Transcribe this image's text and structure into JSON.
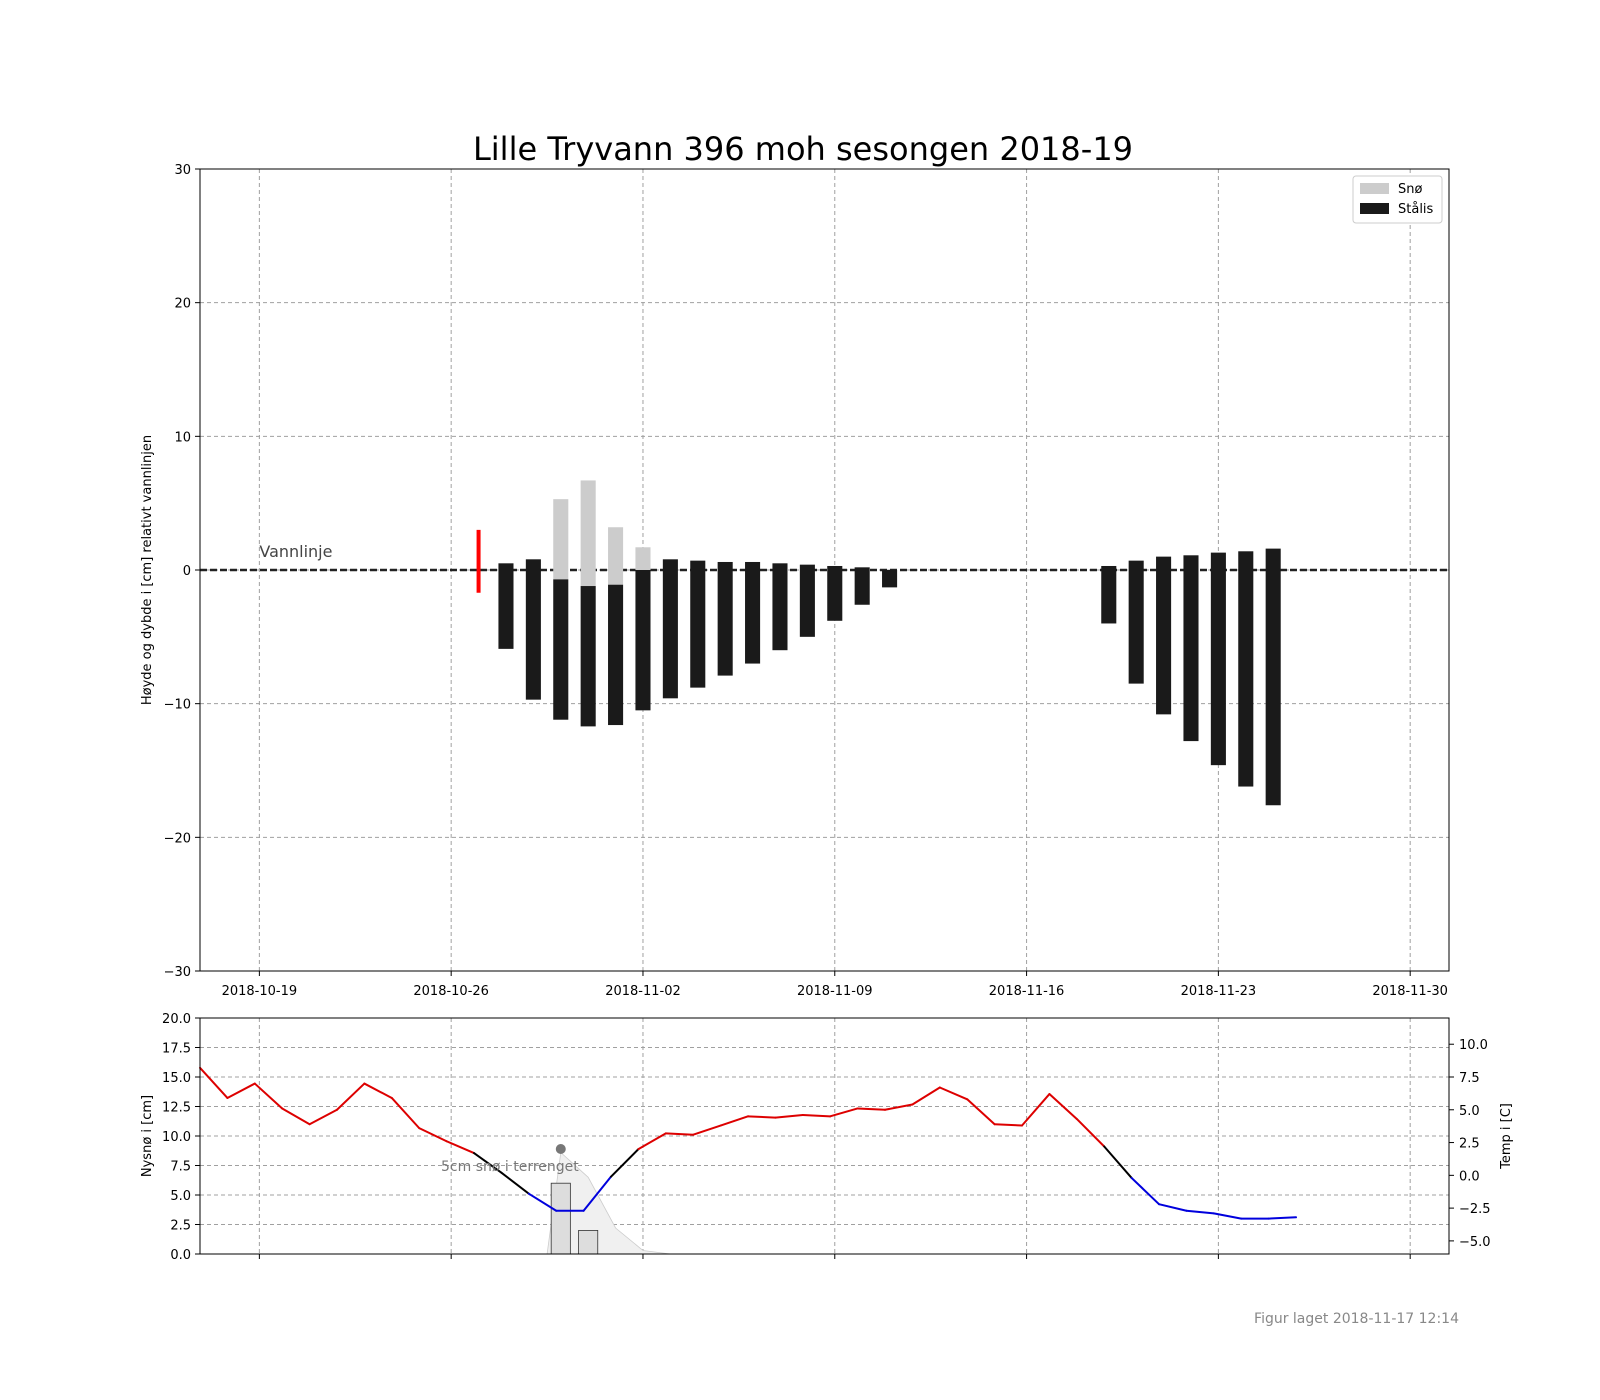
{
  "chart_data": [
    {
      "type": "bar",
      "title": "Lille Tryvann 396 moh sesongen 2018-19",
      "ylabel": "Høyde og dybde i [cm] relativt vannlinjen",
      "xlabel": "",
      "ylim": [
        -30,
        30
      ],
      "xlim": [
        "2018-10-16 20:00",
        "2018-12-01 10:00"
      ],
      "yticks": [
        -30,
        -20,
        -10,
        0,
        10,
        20,
        30
      ],
      "xtick_dates": [
        "2018-10-19",
        "2018-10-26",
        "2018-11-02",
        "2018-11-09",
        "2018-11-16",
        "2018-11-23",
        "2018-11-30"
      ],
      "grid": true,
      "legend_placement": "top-right",
      "annotation": "Vannlinje",
      "colors": {
        "snow": "#cccccc",
        "ice": "#1a1a1a",
        "slush": "#ff0000",
        "waterline": "#222222"
      },
      "legend": [
        {
          "label": "Snø",
          "color": "#cccccc"
        },
        {
          "label": "Stålis",
          "color": "#1a1a1a"
        }
      ],
      "slush_marker": {
        "date": "2018-10-27",
        "top": 3.0,
        "bottom": -1.7
      },
      "series": [
        {
          "name": "Stålis",
          "dates": [
            "2018-10-28",
            "2018-10-29",
            "2018-10-30",
            "2018-10-31",
            "2018-11-01",
            "2018-11-02",
            "2018-11-03",
            "2018-11-04",
            "2018-11-05",
            "2018-11-06",
            "2018-11-07",
            "2018-11-08",
            "2018-11-09",
            "2018-11-10",
            "2018-11-11",
            "2018-11-19",
            "2018-11-20",
            "2018-11-21",
            "2018-11-22",
            "2018-11-23",
            "2018-11-24",
            "2018-11-25"
          ],
          "top": [
            0.5,
            0.8,
            -0.7,
            -1.2,
            -1.1,
            0.0,
            0.8,
            0.7,
            0.6,
            0.6,
            0.5,
            0.4,
            0.3,
            0.2,
            0.0,
            0.3,
            0.7,
            1.0,
            1.1,
            1.3,
            1.4,
            1.6
          ],
          "bottom": [
            -5.9,
            -9.7,
            -11.2,
            -11.7,
            -11.6,
            -10.5,
            -9.6,
            -8.8,
            -7.9,
            -7.0,
            -6.0,
            -5.0,
            -3.8,
            -2.6,
            -1.3,
            -4.0,
            -8.5,
            -10.8,
            -12.8,
            -14.6,
            -16.2,
            -17.6
          ]
        },
        {
          "name": "Snø",
          "dates": [
            "2018-10-30",
            "2018-10-31",
            "2018-11-01",
            "2018-11-02"
          ],
          "top": [
            5.3,
            6.7,
            3.2,
            1.7
          ],
          "bottom": [
            -0.7,
            -1.2,
            -1.1,
            0.0
          ]
        }
      ]
    },
    {
      "type": "line",
      "ylabel": "Nysnø i [cm]",
      "y2label": "Temp i [C]",
      "ylim": [
        0,
        20
      ],
      "y2lim": [
        -6,
        12
      ],
      "yticks": [
        0.0,
        2.5,
        5.0,
        7.5,
        10.0,
        12.5,
        15.0,
        17.5,
        20.0
      ],
      "y2ticks": [
        -5.0,
        -2.5,
        0.0,
        2.5,
        5.0,
        7.5,
        10.0
      ],
      "grid": true,
      "annotation": "5cm snø i terrenget",
      "annotation_point": {
        "date": "2018-10-30",
        "value": 8.9
      },
      "colors": {
        "warm": "#dd0000",
        "cold": "#0000dd",
        "transition": "#000000",
        "snow_area": "#f0f0f0",
        "snow_bar": "#dddddd"
      },
      "new_snow_bars": {
        "dates": [
          "2018-10-30",
          "2018-10-31"
        ],
        "values": [
          6.0,
          2.0
        ]
      },
      "terrain_snow": {
        "dates": [
          "2018-10-16 20:00",
          "2018-10-29 12:00",
          "2018-10-30",
          "2018-10-31",
          "2018-11-01",
          "2018-11-02",
          "2018-11-03",
          "2018-12-01 10:00"
        ],
        "values": [
          0,
          0,
          8.6,
          6.5,
          2.2,
          0.3,
          0,
          0
        ]
      },
      "temperature": {
        "dates": [
          "2018-10-16 20:00",
          "2018-10-17 20:00",
          "2018-10-18 20:00",
          "2018-10-19 20:00",
          "2018-10-20 20:00",
          "2018-10-21 20:00",
          "2018-10-22 20:00",
          "2018-10-23 20:00",
          "2018-10-24 20:00",
          "2018-10-25 20:00",
          "2018-10-26 20:00",
          "2018-10-27 20:00",
          "2018-10-28 20:00",
          "2018-10-29 20:00",
          "2018-10-30 20:00",
          "2018-10-31 20:00",
          "2018-11-01 20:00",
          "2018-11-02 20:00",
          "2018-11-03 20:00",
          "2018-11-04 20:00",
          "2018-11-05 20:00",
          "2018-11-06 20:00",
          "2018-11-07 20:00",
          "2018-11-08 20:00",
          "2018-11-09 20:00",
          "2018-11-10 20:00",
          "2018-11-11 20:00",
          "2018-11-12 20:00",
          "2018-11-13 20:00",
          "2018-11-14 20:00",
          "2018-11-15 20:00",
          "2018-11-16 20:00",
          "2018-11-17 20:00",
          "2018-11-18 20:00",
          "2018-11-19 20:00",
          "2018-11-20 20:00",
          "2018-11-21 20:00",
          "2018-11-22 20:00",
          "2018-11-23 20:00",
          "2018-11-24 20:00",
          "2018-11-25 20:00"
        ],
        "values": [
          8.2,
          5.9,
          7.0,
          5.1,
          3.9,
          5.0,
          7.0,
          5.9,
          3.6,
          2.6,
          1.7,
          0.2,
          -1.4,
          -2.7,
          -2.7,
          -0.1,
          2.0,
          3.2,
          3.1,
          3.8,
          4.5,
          4.4,
          4.6,
          4.5,
          5.1,
          5.0,
          5.4,
          6.7,
          5.8,
          3.9,
          3.8,
          6.2,
          4.3,
          2.2,
          -0.2,
          -2.2,
          -2.7,
          -2.9,
          -3.3,
          -3.3,
          -3.2
        ]
      }
    }
  ],
  "footer": "Figur laget 2018-11-17 12:14"
}
